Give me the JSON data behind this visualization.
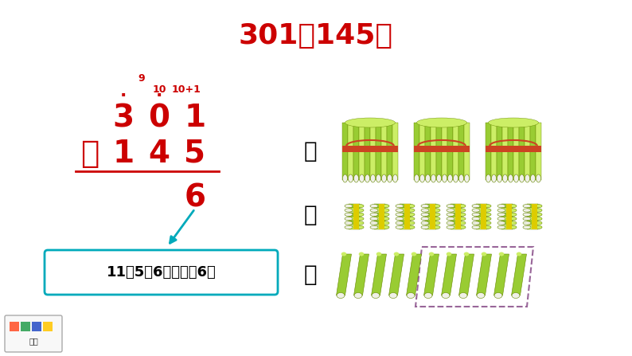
{
  "bg_color": "#ffffff",
  "title": "301－145＝",
  "title_color": "#cc0000",
  "title_fontsize": 26,
  "red_color": "#cc0000",
  "black_color": "#000000",
  "cyan_color": "#00aabb",
  "dark_red_dash": "#993366",
  "main_fontsize": 28,
  "small_fontsize": 10,
  "label_fontsize": 20,
  "box_text": "11－5＝6，个位写6。",
  "label_bai": "百",
  "label_shi": "十",
  "label_ge": "个",
  "stalk_green": "#99cc33",
  "stalk_dark": "#668800",
  "stalk_light": "#ccee66",
  "stalk_white": "#f0f0e8",
  "band_red": "#cc4422",
  "band_yellow": "#ddcc00"
}
